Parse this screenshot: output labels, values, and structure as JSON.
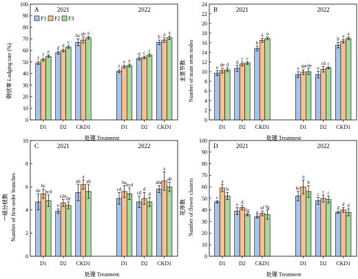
{
  "figure": {
    "shared_xlabel": "处理 Treatment",
    "colors": {
      "F1": "#a9c4eb",
      "F2": "#f5c08f",
      "F3": "#a8d8a0",
      "error": "#000000"
    }
  },
  "chart_data": [
    {
      "panel": "A",
      "type": "bar",
      "ylabel": "倒伏率 Lodging rate (%)",
      "ylim": [
        0,
        100
      ],
      "yticks": [
        0,
        10,
        20,
        30,
        40,
        50,
        60,
        70,
        80,
        90,
        100
      ],
      "xlabel": "处理 Treatment",
      "legend": [
        "F1",
        "F2",
        "F3"
      ],
      "legend_position": "top-left",
      "years": [
        "2021",
        "2022"
      ],
      "categories": [
        "D1",
        "D2",
        "CKD1",
        "D1",
        "D2",
        "CKD1"
      ],
      "series": [
        {
          "name": "F1",
          "values": [
            49,
            58,
            67,
            42,
            53,
            67
          ],
          "errors": [
            1.2,
            1.3,
            3,
            1.2,
            1.2,
            2
          ],
          "letters": [
            "f",
            "d",
            "bc",
            "f",
            "d",
            "b"
          ]
        },
        {
          "name": "F2",
          "values": [
            52,
            60,
            69,
            46,
            54,
            69
          ],
          "errors": [
            1.2,
            1.2,
            2.5,
            1.2,
            1.2,
            2
          ],
          "letters": [
            "f",
            "d",
            "ab",
            "e",
            "c",
            "a"
          ]
        },
        {
          "name": "F3",
          "values": [
            55,
            63,
            71,
            47,
            56,
            71
          ],
          "errors": [
            1.2,
            1.2,
            1.2,
            1.2,
            1.2,
            1.5
          ],
          "letters": [
            "e",
            "c",
            "a",
            "e",
            "c",
            "a"
          ]
        }
      ]
    },
    {
      "panel": "B",
      "type": "bar",
      "ylabel": "主茎节数",
      "ylabel2": "Number of main stem nodes",
      "ylim": [
        0,
        24
      ],
      "yticks": [
        0,
        2,
        4,
        6,
        8,
        10,
        12,
        14,
        16,
        18,
        20,
        22,
        24
      ],
      "xlabel": "处理 Treatment",
      "years": [
        "2021",
        "2022"
      ],
      "categories": [
        "D1",
        "D2",
        "CKD1",
        "D1",
        "D2",
        "CKD1"
      ],
      "series": [
        {
          "name": "F1",
          "values": [
            9.7,
            10.7,
            14.8,
            9.4,
            9.4,
            15.5
          ],
          "errors": [
            0.5,
            0.6,
            0.5,
            0.6,
            0.7,
            0.6
          ],
          "letters": [
            "e",
            "d",
            "b",
            "e",
            "e",
            "b"
          ]
        },
        {
          "name": "F2",
          "values": [
            10.2,
            11.6,
            16.5,
            9.9,
            10.5,
            16.3
          ],
          "errors": [
            0.5,
            0.4,
            0.4,
            0.5,
            0.6,
            0.4
          ],
          "letters": [
            "de",
            "c",
            "a",
            "de",
            "cd",
            "a"
          ]
        },
        {
          "name": "F3",
          "values": [
            10.4,
            11.8,
            16.9,
            10.0,
            10.8,
            16.9
          ],
          "errors": [
            0.4,
            0.3,
            0.3,
            0.6,
            0.2,
            0.3
          ],
          "letters": [
            "d",
            "c",
            "a",
            "cde",
            "c",
            "a"
          ]
        }
      ]
    },
    {
      "panel": "C",
      "type": "bar",
      "ylabel": "一级分枝数",
      "ylabel2": "Number of first-order branches",
      "ylim": [
        0,
        10
      ],
      "yticks": [
        0,
        2,
        4,
        6,
        8,
        10
      ],
      "xlabel": "处理 Treatment",
      "years": [
        "2021",
        "2022"
      ],
      "categories": [
        "D1",
        "D2",
        "CKD1",
        "D1",
        "D2",
        "CKD1"
      ],
      "series": [
        {
          "name": "F1",
          "values": [
            4.7,
            3.9,
            5.5,
            5.0,
            4.7,
            5.8
          ],
          "errors": [
            0.7,
            0.2,
            0.7,
            0.5,
            0.5,
            0.3
          ],
          "letters": [
            "de",
            "e",
            "ab",
            "cd",
            "cd",
            "abc"
          ]
        },
        {
          "name": "F2",
          "values": [
            5.4,
            4.6,
            6.2,
            5.6,
            5.0,
            6.5
          ],
          "errors": [
            0.4,
            0.3,
            0.4,
            0.5,
            0.5,
            0.8
          ],
          "letters": [
            "bc",
            "cde",
            "a",
            "bc",
            "d",
            "a"
          ]
        },
        {
          "name": "F3",
          "values": [
            4.8,
            4.4,
            5.6,
            5.4,
            4.7,
            6.0
          ],
          "errors": [
            0.5,
            0.3,
            0.6,
            0.5,
            0.4,
            0.4
          ],
          "letters": [
            "bcd",
            "de",
            "ab",
            "bcd",
            "d",
            "ab"
          ]
        }
      ]
    },
    {
      "panel": "D",
      "type": "bar",
      "ylabel": "花序数",
      "ylabel2": "Number of flower clusters",
      "ylim": [
        0,
        100
      ],
      "yticks": [
        0,
        10,
        20,
        30,
        40,
        50,
        60,
        70,
        80,
        90,
        100
      ],
      "xlabel": "处理 Treatment",
      "years": [
        "2021",
        "2022"
      ],
      "categories": [
        "D1",
        "D2",
        "CKD1",
        "D1",
        "D2",
        "CKD1"
      ],
      "series": [
        {
          "name": "F1",
          "values": [
            47,
            39,
            34,
            52,
            48,
            38
          ],
          "errors": [
            1,
            3,
            1,
            4,
            3,
            1
          ],
          "letters": [
            "c",
            "e",
            "g",
            "bc",
            "c",
            "d"
          ]
        },
        {
          "name": "F2",
          "values": [
            59,
            42,
            37,
            60,
            50,
            40
          ],
          "errors": [
            3,
            2,
            2,
            6,
            3,
            2
          ],
          "letters": [
            "a",
            "d",
            "ef",
            "a",
            "c",
            "d"
          ]
        },
        {
          "name": "F3",
          "values": [
            52,
            36,
            36,
            56,
            49,
            38
          ],
          "errors": [
            3,
            1,
            4,
            5,
            3,
            3
          ],
          "letters": [
            "b",
            "fg",
            "fg",
            "b",
            "c",
            "d"
          ]
        }
      ]
    }
  ]
}
